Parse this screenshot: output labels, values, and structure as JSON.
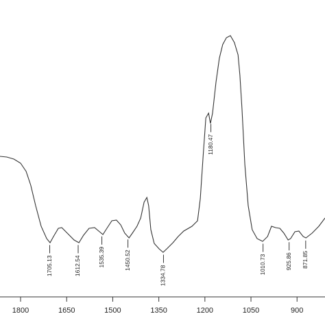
{
  "chart_data": {
    "type": "line",
    "color": "#333333",
    "x": [
      1867,
      1845,
      1822,
      1800,
      1782,
      1767,
      1751,
      1733,
      1715,
      1704,
      1693,
      1677,
      1666,
      1648,
      1626,
      1610,
      1595,
      1577,
      1559,
      1543,
      1532,
      1519,
      1503,
      1488,
      1474,
      1461,
      1447,
      1436,
      1421,
      1409,
      1398,
      1389,
      1383,
      1376,
      1365,
      1349,
      1336,
      1322,
      1304,
      1287,
      1269,
      1242,
      1224,
      1215,
      1206,
      1197,
      1188,
      1182,
      1175,
      1164,
      1153,
      1142,
      1130,
      1117,
      1104,
      1092,
      1086,
      1079,
      1070,
      1059,
      1046,
      1030,
      1012,
      996,
      983,
      970,
      956,
      943,
      929,
      921,
      907,
      894,
      880,
      871,
      851,
      829,
      809
    ],
    "values": [
      205,
      204,
      201,
      195,
      183,
      163,
      133,
      103,
      85,
      79,
      88,
      100,
      101,
      93,
      83,
      79,
      90,
      100,
      101,
      95,
      91,
      100,
      111,
      112,
      105,
      93,
      86,
      93,
      103,
      115,
      138,
      145,
      133,
      98,
      78,
      70,
      65,
      71,
      79,
      88,
      96,
      103,
      111,
      143,
      203,
      261,
      268,
      253,
      268,
      313,
      348,
      368,
      378,
      381,
      371,
      353,
      323,
      273,
      193,
      133,
      98,
      85,
      81,
      88,
      103,
      101,
      100,
      93,
      83,
      85,
      95,
      96,
      88,
      86,
      93,
      103,
      115
    ],
    "xlim": [
      1867,
      809
    ],
    "ylim": [
      0,
      433
    ],
    "xticks": [
      1800,
      1650,
      1500,
      1350,
      1200,
      1050,
      900
    ],
    "peaks": [
      1705.13,
      1612.54,
      1535.39,
      1450.52,
      1334.78,
      1180.47,
      1010.73,
      925.86,
      871.85
    ]
  }
}
